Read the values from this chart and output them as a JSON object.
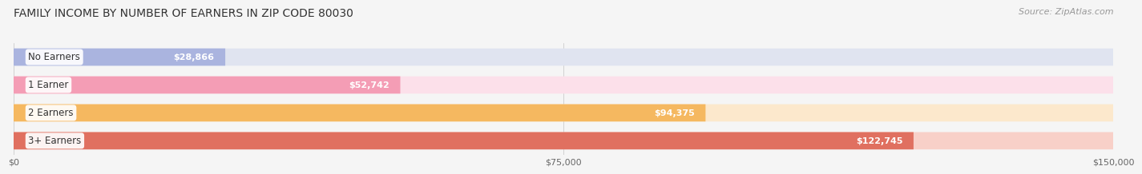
{
  "title": "FAMILY INCOME BY NUMBER OF EARNERS IN ZIP CODE 80030",
  "source": "Source: ZipAtlas.com",
  "categories": [
    "No Earners",
    "1 Earner",
    "2 Earners",
    "3+ Earners"
  ],
  "values": [
    28866,
    52742,
    94375,
    122745
  ],
  "labels": [
    "$28,866",
    "$52,742",
    "$94,375",
    "$122,745"
  ],
  "bar_colors": [
    "#aab4df",
    "#f49db5",
    "#f5b860",
    "#e07060"
  ],
  "bar_bg_colors": [
    "#e0e4f0",
    "#fce0ea",
    "#fce8cc",
    "#f8d0c8"
  ],
  "xmax": 150000,
  "xticks": [
    0,
    75000,
    150000
  ],
  "xticklabels": [
    "$0",
    "$75,000",
    "$150,000"
  ],
  "title_fontsize": 10,
  "source_fontsize": 8,
  "bar_height": 0.62,
  "background_color": "#f5f5f5"
}
